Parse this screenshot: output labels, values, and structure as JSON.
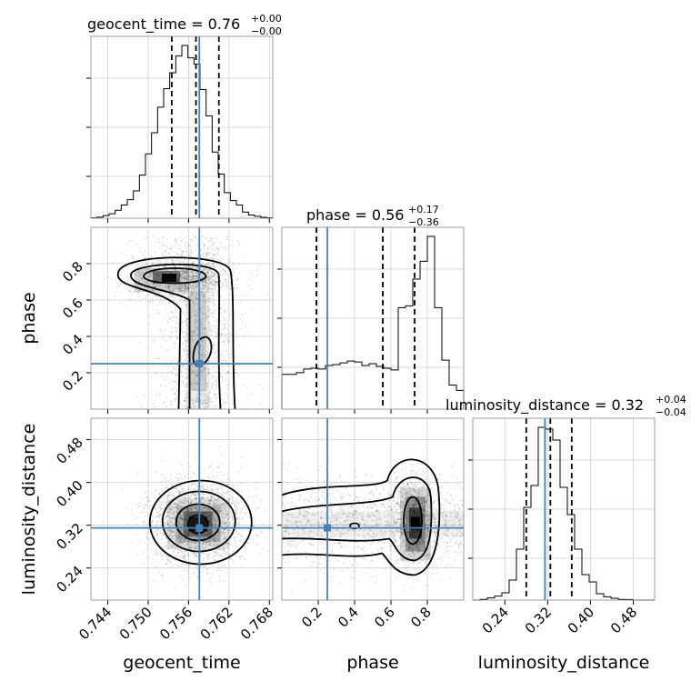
{
  "figure": {
    "title_geocent": {
      "label": "geocent_time = 0.76",
      "sup": "+0.00",
      "sub": "−0.00"
    },
    "title_phase": {
      "label": "phase = 0.56",
      "sup": "+0.17",
      "sub": "−0.36"
    },
    "title_lum": {
      "label": "luminosity_distance = 0.32",
      "sup": "+0.04",
      "sub": "−0.04"
    },
    "xlabels": [
      "geocent_time",
      "phase",
      "luminosity_distance"
    ],
    "ylabels": [
      "phase",
      "luminosity_distance"
    ]
  },
  "chart_data": {
    "type": "corner",
    "parameters": [
      "geocent_time",
      "phase",
      "luminosity_distance"
    ],
    "truth": {
      "geocent_time": 0.7576,
      "phase": 0.25,
      "luminosity_distance": 0.315
    },
    "ranges": {
      "geocent_time": [
        0.7415,
        0.7685
      ],
      "phase": [
        0.0,
        1.0
      ],
      "luminosity_distance": [
        0.18,
        0.52
      ]
    },
    "ticks": {
      "geocent_time": [
        "0.744",
        "0.750",
        "0.756",
        "0.762",
        "0.768"
      ],
      "phase": [
        "0.2",
        "0.4",
        "0.6",
        "0.8"
      ],
      "luminosity_distance": [
        "0.24",
        "0.32",
        "0.40",
        "0.48"
      ]
    },
    "quantiles": {
      "geocent_time": [
        0.7535,
        0.7571,
        0.7605
      ],
      "phase": [
        0.19,
        0.555,
        0.73
      ],
      "luminosity_distance": [
        0.28,
        0.325,
        0.365
      ]
    },
    "hist": {
      "geocent_time": [
        0.2,
        0.6,
        1.5,
        2.5,
        4.5,
        7.5,
        10.5,
        15.5,
        24.5,
        36.5,
        48.5,
        63,
        73.5,
        82.5,
        92,
        98,
        91,
        87.5,
        73,
        58,
        37.5,
        25,
        14.5,
        10,
        7.5,
        3.5,
        1.8,
        1.1,
        0.5,
        0.2
      ],
      "phase": [
        19.5,
        19.5,
        20.5,
        22.5,
        23,
        22.5,
        24.5,
        25,
        26,
        27,
        26.5,
        24.5,
        25.5,
        24,
        23,
        22,
        57,
        58,
        73,
        83,
        97,
        57,
        27.5,
        13.5,
        10.5
      ],
      "luminosity_distance": [
        0,
        0.4,
        1.2,
        2.2,
        4,
        11,
        28,
        51,
        63,
        95,
        94,
        88,
        62,
        47,
        28,
        14,
        10,
        3.5,
        1.8,
        1,
        0.4,
        0.3,
        0,
        0,
        0
      ]
    },
    "hist_edges_count": {
      "geocent_time": 30,
      "phase": 25,
      "luminosity_distance": 25
    }
  }
}
